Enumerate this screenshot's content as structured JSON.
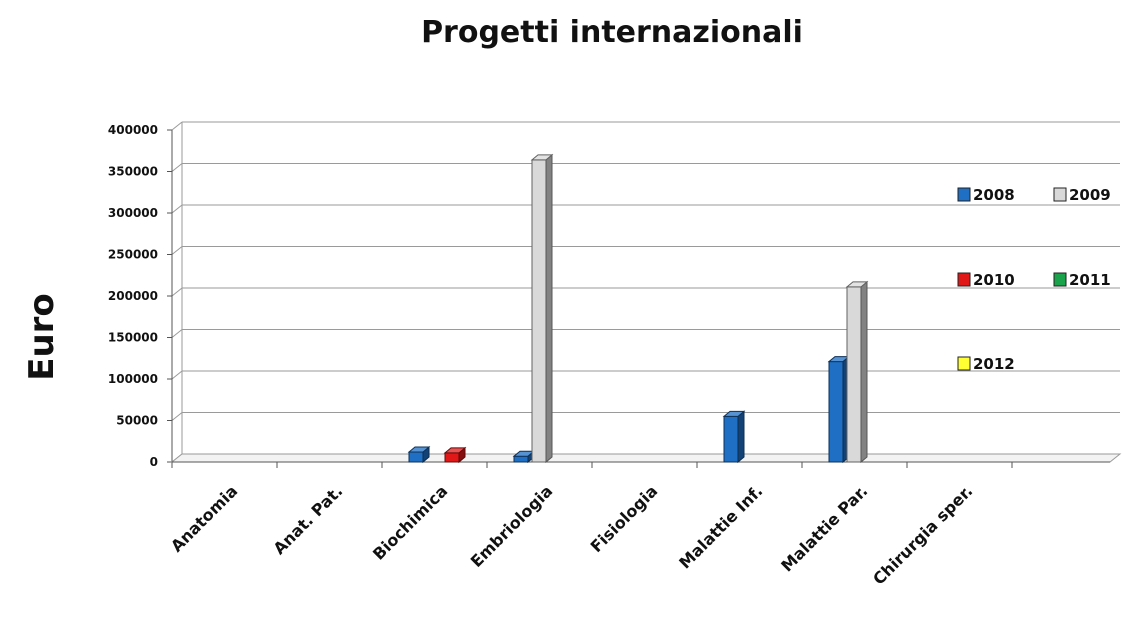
{
  "chart_data": {
    "type": "bar",
    "title": "Progetti internazionali",
    "ylabel": "Euro",
    "xlabel": "",
    "ylim": [
      0,
      400000
    ],
    "yticks": [
      0,
      50000,
      100000,
      150000,
      200000,
      250000,
      300000,
      350000,
      400000
    ],
    "grid": true,
    "legend_position": "right",
    "categories": [
      "Anatomia",
      "Anat. Pat.",
      "Biochimica",
      "Embriologia",
      "Fisiologia",
      "Malattie Inf.",
      "Malattie Par.",
      "Chirurgia sper."
    ],
    "series": [
      {
        "name": "2008",
        "color": "#1f6fc4",
        "values": [
          0,
          0,
          12000,
          7000,
          0,
          55000,
          121000,
          0
        ]
      },
      {
        "name": "2009",
        "color": "#d9d9d9",
        "values": [
          0,
          0,
          0,
          364000,
          0,
          0,
          211000,
          0
        ]
      },
      {
        "name": "2010",
        "color": "#e01818",
        "values": [
          0,
          0,
          11000,
          0,
          0,
          0,
          0,
          0
        ]
      },
      {
        "name": "2011",
        "color": "#1aa34a",
        "values": [
          0,
          0,
          0,
          0,
          0,
          0,
          0,
          0
        ]
      },
      {
        "name": "2012",
        "color": "#ffff33",
        "values": [
          0,
          0,
          0,
          0,
          0,
          0,
          0,
          0
        ]
      }
    ]
  }
}
